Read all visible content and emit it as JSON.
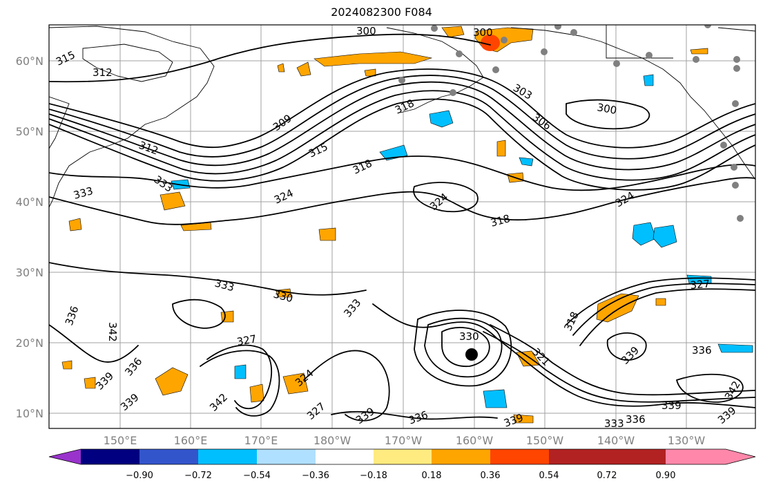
{
  "title": "2024082300 F084",
  "lon_ticks": [
    "150°E",
    "160°E",
    "170°E",
    "180°W",
    "170°W",
    "160°W",
    "150°W",
    "140°W",
    "130°W"
  ],
  "lat_ticks": [
    "60°N",
    "50°N",
    "40°N",
    "30°N",
    "20°N",
    "10°N"
  ],
  "colorbar": {
    "colors": [
      "#9933cc",
      "#000080",
      "#3355cc",
      "#00bfff",
      "#b0e0ff",
      "#ffffff",
      "#ffeb80",
      "#ffa500",
      "#ff4500",
      "#b22222",
      "#ff88aa"
    ],
    "ticks": [
      "−0.90",
      "−0.72",
      "−0.54",
      "−0.36",
      "−0.18",
      "0.18",
      "0.36",
      "0.54",
      "0.72",
      "0.90"
    ]
  },
  "contour_labels": [
    {
      "text": "300"
    },
    {
      "text": "300"
    },
    {
      "text": "315"
    },
    {
      "text": "312"
    },
    {
      "text": "309"
    },
    {
      "text": "318"
    },
    {
      "text": "303"
    },
    {
      "text": "306"
    },
    {
      "text": "300"
    },
    {
      "text": "312"
    },
    {
      "text": "315"
    },
    {
      "text": "318"
    },
    {
      "text": "333"
    },
    {
      "text": "333"
    },
    {
      "text": "324"
    },
    {
      "text": "324"
    },
    {
      "text": "324"
    },
    {
      "text": "318"
    },
    {
      "text": "333"
    },
    {
      "text": "330"
    },
    {
      "text": "336"
    },
    {
      "text": "342"
    },
    {
      "text": "333"
    },
    {
      "text": "327"
    },
    {
      "text": "330"
    },
    {
      "text": "339"
    },
    {
      "text": "336"
    },
    {
      "text": "339"
    },
    {
      "text": "342"
    },
    {
      "text": "324"
    },
    {
      "text": "327"
    },
    {
      "text": "339"
    },
    {
      "text": "336"
    },
    {
      "text": "339"
    },
    {
      "text": "321"
    },
    {
      "text": "318"
    },
    {
      "text": "327"
    },
    {
      "text": "339"
    },
    {
      "text": "336"
    },
    {
      "text": "339"
    },
    {
      "text": "342"
    },
    {
      "text": "339"
    },
    {
      "text": "333"
    },
    {
      "text": "336"
    }
  ]
}
